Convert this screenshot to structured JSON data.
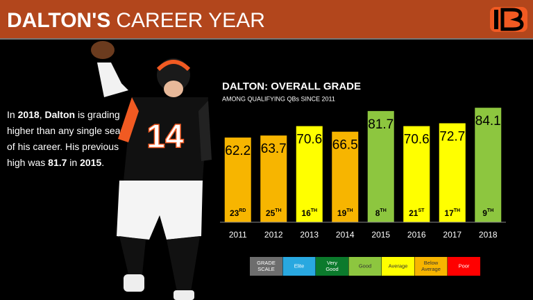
{
  "header": {
    "title_bold": "DALTON'S",
    "title_rest": "CAREER YEAR"
  },
  "blurb": [
    [
      {
        "text": "In "
      },
      {
        "text": "2018",
        "bold": true
      },
      {
        "text": ", "
      },
      {
        "text": "Dalton",
        "bold": true
      },
      {
        "text": " is grading"
      }
    ],
    [
      {
        "text": "higher than any single season"
      }
    ],
    [
      {
        "text": "of his career. His previous"
      }
    ],
    [
      {
        "text": "high was "
      },
      {
        "text": "81.7",
        "bold": true
      },
      {
        "text": " in "
      },
      {
        "text": "2015",
        "bold": true
      },
      {
        "text": "."
      }
    ]
  ],
  "player": {
    "number": "14"
  },
  "chart_data": {
    "type": "bar",
    "title": "DALTON: OVERALL GRADE",
    "subtitle": "AMONG QUALIFYING QBs SINCE 2011",
    "categories": [
      "2011",
      "2012",
      "2013",
      "2014",
      "2015",
      "2016",
      "2017",
      "2018"
    ],
    "values": [
      62.2,
      63.7,
      70.6,
      66.5,
      81.7,
      70.6,
      72.7,
      84.1
    ],
    "colors": [
      "#f7b500",
      "#f7b500",
      "#ffff00",
      "#f7b500",
      "#8dc63f",
      "#ffff00",
      "#ffff00",
      "#8dc63f"
    ],
    "ranks": [
      "23",
      "25",
      "16",
      "19",
      "8",
      "21",
      "17",
      "9"
    ],
    "rank_suffixes": [
      "RD",
      "TH",
      "TH",
      "TH",
      "TH",
      "ST",
      "TH",
      "TH"
    ],
    "ylim": [
      0,
      100
    ],
    "legend": [
      {
        "lines": [
          "GRADE",
          "SCALE"
        ],
        "color": "#6d6d6d"
      },
      {
        "lines": [
          "Elite"
        ],
        "color": "#29a8e0"
      },
      {
        "lines": [
          "Very",
          "Good"
        ],
        "color": "#0b7a2c"
      },
      {
        "lines": [
          "Good"
        ],
        "color": "#8dc63f"
      },
      {
        "lines": [
          "Average"
        ],
        "color": "#ffff00"
      },
      {
        "lines": [
          "Below",
          "Average"
        ],
        "color": "#f7b500"
      },
      {
        "lines": [
          "Poor"
        ],
        "color": "#ff0000"
      }
    ]
  }
}
